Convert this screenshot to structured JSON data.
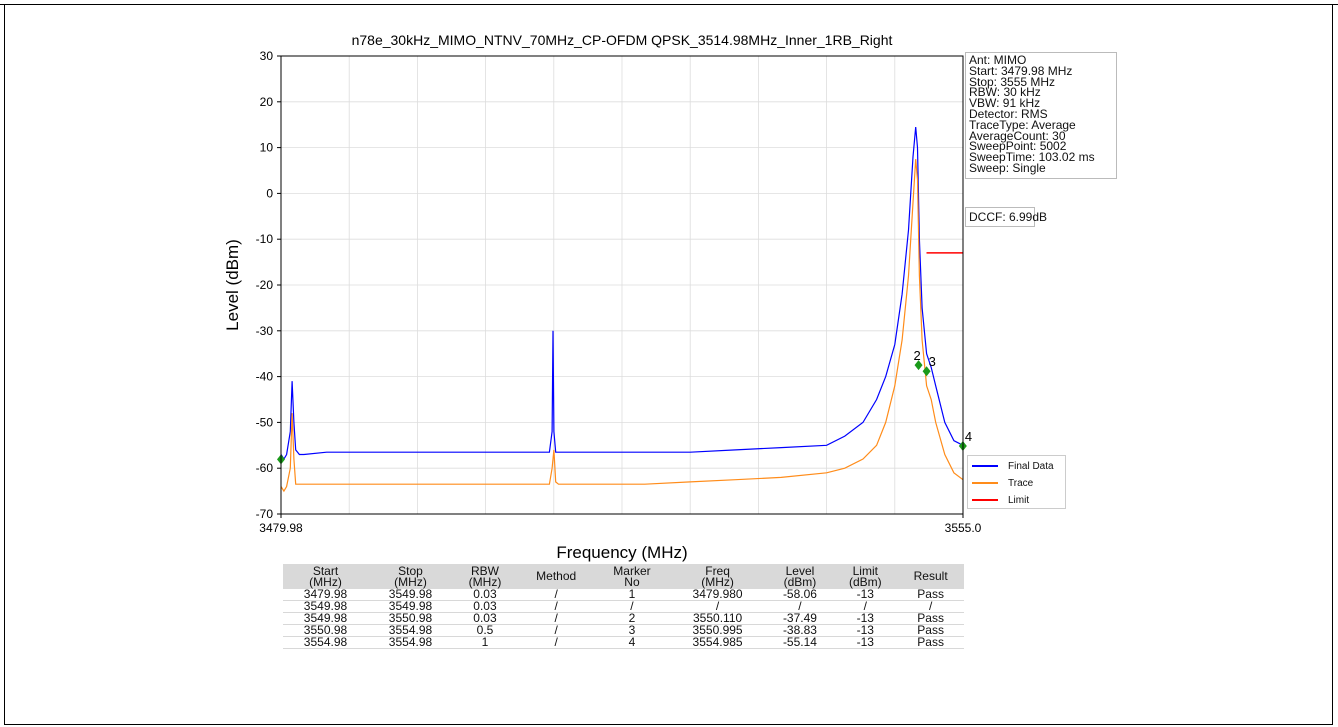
{
  "chart_data": {
    "type": "line",
    "title": "n78e_30kHz_MIMO_NTNV_70MHz_CP-OFDM QPSK_3514.98MHz_Inner_1RB_Right",
    "xlabel": "Frequency (MHz)",
    "ylabel": "Level (dBm)",
    "xlim": [
      3479.98,
      3555.0
    ],
    "ylim": [
      -70,
      30
    ],
    "x_tick_labels": [
      "3479.98",
      "3555.0"
    ],
    "y_ticks": [
      30,
      20,
      10,
      0,
      -10,
      -20,
      -30,
      -40,
      -50,
      -60,
      -70
    ],
    "grid": true,
    "legend_placement": "lower-right",
    "series": [
      {
        "name": "Final Data",
        "color": "#0000ff",
        "x": [
          3479.98,
          3480.3,
          3480.6,
          3481.0,
          3481.2,
          3481.4,
          3481.6,
          3482.0,
          3482.5,
          3485,
          3490,
          3495,
          3500,
          3505,
          3509.5,
          3509.8,
          3509.9,
          3510.0,
          3510.2,
          3510.5,
          3515,
          3520,
          3525,
          3530,
          3535,
          3540,
          3542,
          3544,
          3545.5,
          3546.5,
          3547.5,
          3548.3,
          3549.0,
          3549.5,
          3549.8,
          3550.0,
          3550.2,
          3550.5,
          3551.0,
          3551.5,
          3552.0,
          3553.0,
          3554.0,
          3555.0
        ],
        "y": [
          -57,
          -58,
          -57,
          -52,
          -41,
          -50,
          -56,
          -57,
          -57,
          -56.5,
          -56.5,
          -56.5,
          -56.5,
          -56.5,
          -56.5,
          -52,
          -30,
          -52,
          -56.5,
          -56.5,
          -56.5,
          -56.5,
          -56.5,
          -56,
          -55.5,
          -55,
          -53,
          -50,
          -45,
          -40,
          -33,
          -22,
          -8,
          8,
          14.5,
          10,
          -10,
          -25,
          -35,
          -38,
          -42,
          -50,
          -54,
          -55
        ]
      },
      {
        "name": "Trace",
        "color": "#ff8c1a",
        "x": [
          3479.98,
          3480.3,
          3480.6,
          3481.0,
          3481.2,
          3481.4,
          3481.6,
          3482.0,
          3482.5,
          3485,
          3490,
          3495,
          3500,
          3505,
          3509.5,
          3509.8,
          3510.0,
          3510.2,
          3510.5,
          3515,
          3520,
          3525,
          3530,
          3535,
          3540,
          3542,
          3544,
          3545.5,
          3546.5,
          3547.5,
          3548.3,
          3549.0,
          3549.5,
          3549.8,
          3550.0,
          3550.2,
          3550.5,
          3551.0,
          3551.5,
          3552.0,
          3553.0,
          3554.0,
          3555.0
        ],
        "y": [
          -64,
          -65,
          -64,
          -60,
          -48,
          -58,
          -63.5,
          -63.5,
          -63.5,
          -63.5,
          -63.5,
          -63.5,
          -63.5,
          -63.5,
          -63.5,
          -60,
          -56,
          -63,
          -63.5,
          -63.5,
          -63.5,
          -63,
          -62.5,
          -62,
          -61,
          -60,
          -58,
          -55,
          -50,
          -42,
          -32,
          -18,
          -2,
          7.5,
          3,
          -18,
          -32,
          -42,
          -45,
          -50,
          -57,
          -61,
          -62.5
        ]
      },
      {
        "name": "Limit",
        "color": "#ff0000",
        "x": [
          3550.98,
          3555.0
        ],
        "y": [
          -13,
          -13
        ]
      }
    ],
    "markers": [
      {
        "label": "",
        "x": 3479.98,
        "y": -58.06
      },
      {
        "label": "2",
        "x": 3550.11,
        "y": -37.49
      },
      {
        "label": "3",
        "x": 3550.995,
        "y": -38.83
      },
      {
        "label": "4",
        "x": 3554.985,
        "y": -55.14
      }
    ]
  },
  "info_box": [
    "Ant: MIMO",
    "Start: 3479.98 MHz",
    "Stop: 3555 MHz",
    "RBW: 30 kHz",
    "VBW: 91 kHz",
    "Detector: RMS",
    "TraceType: Average",
    "AverageCount: 30",
    "SweepPoint: 5002",
    "SweepTime: 103.02 ms",
    "Sweep: Single"
  ],
  "dccf": "DCCF: 6.99dB",
  "table": {
    "headers": [
      [
        "Start",
        "(MHz)"
      ],
      [
        "Stop",
        "(MHz)"
      ],
      [
        "RBW",
        "(MHz)"
      ],
      [
        "Method",
        ""
      ],
      [
        "Marker",
        "No"
      ],
      [
        "Freq",
        "(MHz)"
      ],
      [
        "Level",
        "(dBm)"
      ],
      [
        "Limit",
        "(dBm)"
      ],
      [
        "Result",
        ""
      ]
    ],
    "rows": [
      [
        "3479.98",
        "3549.98",
        "0.03",
        "/",
        "1",
        "3479.980",
        "-58.06",
        "-13",
        "Pass"
      ],
      [
        "3549.98",
        "3549.98",
        "0.03",
        "/",
        "/",
        "/",
        "/",
        "/",
        "/"
      ],
      [
        "3549.98",
        "3550.98",
        "0.03",
        "/",
        "2",
        "3550.110",
        "-37.49",
        "-13",
        "Pass"
      ],
      [
        "3550.98",
        "3554.98",
        "0.5",
        "/",
        "3",
        "3550.995",
        "-38.83",
        "-13",
        "Pass"
      ],
      [
        "3554.98",
        "3554.98",
        "1",
        "/",
        "4",
        "3554.985",
        "-55.14",
        "-13",
        "Pass"
      ]
    ]
  }
}
